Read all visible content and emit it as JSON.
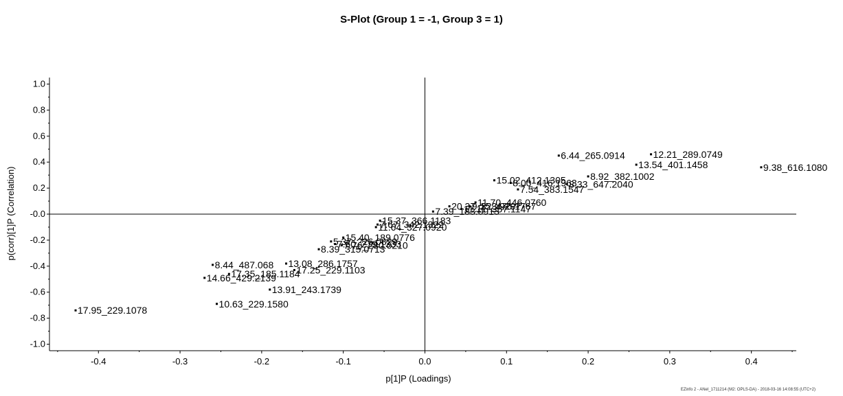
{
  "chart_data": {
    "type": "scatter",
    "title": "S-Plot (Group 1 = -1, Group 3 = 1)",
    "xlabel": "p[1]P (Loadings)",
    "ylabel": "p(corr)[1]P (Correlation)",
    "xlim": [
      -0.46,
      0.455
    ],
    "ylim": [
      -1.05,
      1.05
    ],
    "x_ticks": [
      -0.4,
      -0.3,
      -0.2,
      -0.1,
      0.0,
      0.1,
      0.2,
      0.3,
      0.4
    ],
    "x_tick_labels": [
      "-0.4",
      "-0.3",
      "-0.2",
      "-0.1",
      "0.0",
      "0.1",
      "0.2",
      "0.3",
      "0.4"
    ],
    "y_ticks": [
      1.0,
      0.8,
      0.6,
      0.4,
      0.2,
      0.0,
      -0.2,
      -0.4,
      -0.6,
      -0.8,
      -1.0
    ],
    "y_tick_labels": [
      "1.0",
      "0.8",
      "0.6",
      "0.4",
      "0.2",
      "-0.0",
      "-0.2",
      "-0.4",
      "-0.6",
      "-0.8",
      "-1.0"
    ],
    "grid": false,
    "legend": "none",
    "point_color": "#000000",
    "points": [
      {
        "x": 0.412,
        "y": 0.36,
        "label": "9.38_616.1080"
      },
      {
        "x": 0.277,
        "y": 0.46,
        "label": "12.21_289.0749"
      },
      {
        "x": 0.164,
        "y": 0.45,
        "label": "6.44_265.0914"
      },
      {
        "x": 0.259,
        "y": 0.38,
        "label": "13.54_401.1458"
      },
      {
        "x": 0.2,
        "y": 0.29,
        "label": "8.92_382.1002"
      },
      {
        "x": 0.174,
        "y": 0.23,
        "label": "8.33_647.2040"
      },
      {
        "x": 0.085,
        "y": 0.26,
        "label": "15.02_412.1305"
      },
      {
        "x": 0.105,
        "y": 0.24,
        "label": "8.00_416.1963"
      },
      {
        "x": 0.114,
        "y": 0.19,
        "label": "7.54_383.1547"
      },
      {
        "x": 0.062,
        "y": 0.09,
        "label": "11.70_446.0760"
      },
      {
        "x": 0.055,
        "y": 0.06,
        "label": "9.15_476.1767"
      },
      {
        "x": 0.045,
        "y": 0.04,
        "label": "11.11_357.1147"
      },
      {
        "x": 0.03,
        "y": 0.06,
        "label": "20.37_323.9297"
      },
      {
        "x": 0.01,
        "y": 0.02,
        "label": "7.39_183.0913"
      },
      {
        "x": -0.055,
        "y": -0.05,
        "label": "15.37_366.1183"
      },
      {
        "x": -0.058,
        "y": -0.08,
        "label": "7.67_342.1322"
      },
      {
        "x": -0.06,
        "y": -0.1,
        "label": "11.64_327.0920"
      },
      {
        "x": -0.1,
        "y": -0.18,
        "label": "15.40_189.0776"
      },
      {
        "x": -0.115,
        "y": -0.21,
        "label": "5.37_226.0829"
      },
      {
        "x": -0.11,
        "y": -0.23,
        "label": "7.60_279.1333"
      },
      {
        "x": -0.102,
        "y": -0.24,
        "label": "7.76_280.0210"
      },
      {
        "x": -0.13,
        "y": -0.27,
        "label": "8.39_315.0713"
      },
      {
        "x": -0.26,
        "y": -0.39,
        "label": "8.44_487.068"
      },
      {
        "x": -0.17,
        "y": -0.38,
        "label": "13.08_286.1757"
      },
      {
        "x": -0.24,
        "y": -0.46,
        "label": "17.35_185.1184"
      },
      {
        "x": -0.16,
        "y": -0.43,
        "label": "17.25_229.1103"
      },
      {
        "x": -0.27,
        "y": -0.49,
        "label": "14.66_429.2139"
      },
      {
        "x": -0.19,
        "y": -0.58,
        "label": "13.91_243.1739"
      },
      {
        "x": -0.255,
        "y": -0.69,
        "label": "10.63_229.1580"
      },
      {
        "x": -0.428,
        "y": -0.74,
        "label": "17.95_229.1078"
      }
    ]
  },
  "footer_note": "EZinfo 2 - ANel_1711214 (M2: OPLS-DA) - 2018-03-16 14:08:55 (UTC+2)"
}
